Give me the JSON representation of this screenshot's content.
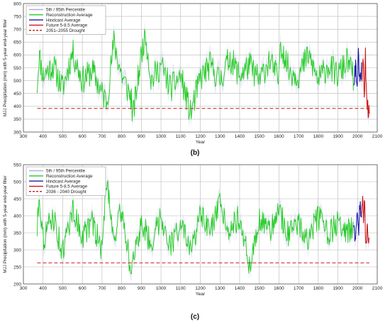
{
  "chart_data": [
    {
      "type": "line",
      "panel_label": "(b)",
      "xlabel": "Year",
      "ylabel": "MJJ Precipitation (mm) with 5-year end-year filter",
      "xlim": [
        300,
        2100
      ],
      "ylim": [
        300,
        800
      ],
      "xticks": [
        "300",
        "400",
        "500",
        "600",
        "700",
        "800",
        "900",
        "1000",
        "1100",
        "1200",
        "1300",
        "1400",
        "1500",
        "1600",
        "1700",
        "1800",
        "1900",
        "2000",
        "2100"
      ],
      "yticks": [
        "300",
        "350",
        "400",
        "450",
        "500",
        "550",
        "600",
        "650",
        "700",
        "750",
        "800"
      ],
      "grid": true,
      "legend_position": "top-left",
      "legend": [
        {
          "label": "5th / 95th Percentile",
          "color": "#aab0dd",
          "style": "solid"
        },
        {
          "label": "Reconstruction Average",
          "color": "#22cc22",
          "style": "solid"
        },
        {
          "label": "Hindcast Average",
          "color": "#1a1aa8",
          "style": "solid"
        },
        {
          "label": "Future 5-8.5 Average",
          "color": "#cc1a1a",
          "style": "solid"
        },
        {
          "label": "2051–2055 Drought",
          "color": "#cc1a1a",
          "style": "dashed"
        }
      ],
      "series": [
        {
          "name": "Reconstruction Average",
          "x": [
            370,
            1980
          ],
          "summary": {
            "mean": 500,
            "min": 340,
            "max": 700
          },
          "y_sample": [
            [
              370,
              480
            ],
            [
              380,
              600
            ],
            [
              400,
              520
            ],
            [
              450,
              560
            ],
            [
              500,
              470
            ],
            [
              550,
              610
            ],
            [
              600,
              500
            ],
            [
              650,
              540
            ],
            [
              700,
              450
            ],
            [
              725,
              420
            ],
            [
              760,
              650
            ],
            [
              800,
              520
            ],
            [
              850,
              430
            ],
            [
              855,
              350
            ],
            [
              900,
              600
            ],
            [
              920,
              690
            ],
            [
              950,
              500
            ],
            [
              1000,
              560
            ],
            [
              1050,
              470
            ],
            [
              1100,
              520
            ],
            [
              1150,
              370
            ],
            [
              1200,
              510
            ],
            [
              1250,
              560
            ],
            [
              1300,
              500
            ],
            [
              1350,
              590
            ],
            [
              1400,
              520
            ],
            [
              1450,
              560
            ],
            [
              1500,
              500
            ],
            [
              1550,
              580
            ],
            [
              1600,
              500
            ],
            [
              1605,
              660
            ],
            [
              1650,
              540
            ],
            [
              1700,
              520
            ],
            [
              1750,
              600
            ],
            [
              1800,
              500
            ],
            [
              1850,
              560
            ],
            [
              1900,
              520
            ],
            [
              1950,
              580
            ],
            [
              1980,
              510
            ]
          ]
        },
        {
          "name": "Hindcast Average",
          "x": [
            1980,
            2020
          ],
          "y_sample": [
            [
              1980,
              500
            ],
            [
              1990,
              560
            ],
            [
              2000,
              470
            ],
            [
              2005,
              630
            ],
            [
              2010,
              490
            ],
            [
              2020,
              540
            ]
          ]
        },
        {
          "name": "Future 5-8.5 Average",
          "x": [
            2020,
            2060
          ],
          "y_sample": [
            [
              2020,
              520
            ],
            [
              2030,
              580
            ],
            [
              2035,
              430
            ],
            [
              2040,
              600
            ],
            [
              2045,
              470
            ],
            [
              2050,
              410
            ],
            [
              2055,
              380
            ],
            [
              2060,
              400
            ]
          ]
        },
        {
          "name": "2051–2055 Drought",
          "y": 392,
          "x": [
            370,
            2060
          ]
        }
      ]
    },
    {
      "type": "line",
      "panel_label": "(c)",
      "xlabel": "Year",
      "ylabel": "MJJ Precipitation (mm) with 5-year end-year filter",
      "xlim": [
        300,
        2100
      ],
      "ylim": [
        200,
        550
      ],
      "xticks": [
        "300",
        "400",
        "500",
        "600",
        "700",
        "800",
        "900",
        "1000",
        "1100",
        "1200",
        "1300",
        "1400",
        "1500",
        "1600",
        "1700",
        "1800",
        "1900",
        "2000",
        "2100"
      ],
      "yticks": [
        "200",
        "250",
        "300",
        "350",
        "400",
        "450",
        "500",
        "550"
      ],
      "grid": true,
      "legend_position": "top-left",
      "legend": [
        {
          "label": "5th / 95th Percentile",
          "color": "#aab0dd",
          "style": "solid"
        },
        {
          "label": "Reconstruction Average",
          "color": "#22cc22",
          "style": "solid"
        },
        {
          "label": "Hindcast Average",
          "color": "#1a1aa8",
          "style": "solid"
        },
        {
          "label": "Future 5-8.5 Average",
          "color": "#cc1a1a",
          "style": "solid"
        },
        {
          "label": "2036 - 2040 Drought",
          "color": "#cc1a1a",
          "style": "dashed"
        }
      ],
      "series": [
        {
          "name": "Reconstruction Average",
          "x": [
            370,
            1980
          ],
          "summary": {
            "mean": 365,
            "min": 230,
            "max": 515
          },
          "y_sample": [
            [
              370,
              360
            ],
            [
              380,
              470
            ],
            [
              400,
              330
            ],
            [
              450,
              400
            ],
            [
              500,
              290
            ],
            [
              550,
              420
            ],
            [
              600,
              340
            ],
            [
              650,
              380
            ],
            [
              700,
              300
            ],
            [
              725,
              515
            ],
            [
              760,
              330
            ],
            [
              800,
              420
            ],
            [
              850,
              230
            ],
            [
              900,
              380
            ],
            [
              950,
              320
            ],
            [
              1000,
              400
            ],
            [
              1050,
              310
            ],
            [
              1100,
              380
            ],
            [
              1150,
              290
            ],
            [
              1200,
              400
            ],
            [
              1250,
              350
            ],
            [
              1300,
              430
            ],
            [
              1350,
              360
            ],
            [
              1400,
              400
            ],
            [
              1450,
              250
            ],
            [
              1500,
              390
            ],
            [
              1550,
              350
            ],
            [
              1600,
              420
            ],
            [
              1650,
              340
            ],
            [
              1700,
              380
            ],
            [
              1750,
              330
            ],
            [
              1800,
              400
            ],
            [
              1850,
              340
            ],
            [
              1900,
              380
            ],
            [
              1950,
              350
            ],
            [
              1980,
              380
            ]
          ]
        },
        {
          "name": "Hindcast Average",
          "x": [
            1980,
            2020
          ],
          "y_sample": [
            [
              1980,
              380
            ],
            [
              1990,
              330
            ],
            [
              2000,
              420
            ],
            [
              2005,
              340
            ],
            [
              2010,
              440
            ],
            [
              2020,
              400
            ]
          ]
        },
        {
          "name": "Future 5-8.5 Average",
          "x": [
            2020,
            2060
          ],
          "y_sample": [
            [
              2020,
              420
            ],
            [
              2025,
              460
            ],
            [
              2030,
              380
            ],
            [
              2035,
              430
            ],
            [
              2040,
              350
            ],
            [
              2045,
              330
            ],
            [
              2050,
              370
            ],
            [
              2055,
              340
            ],
            [
              2060,
              350
            ]
          ]
        },
        {
          "name": "2036 - 2040 Drought",
          "y": 262,
          "x": [
            370,
            2060
          ]
        }
      ]
    }
  ]
}
